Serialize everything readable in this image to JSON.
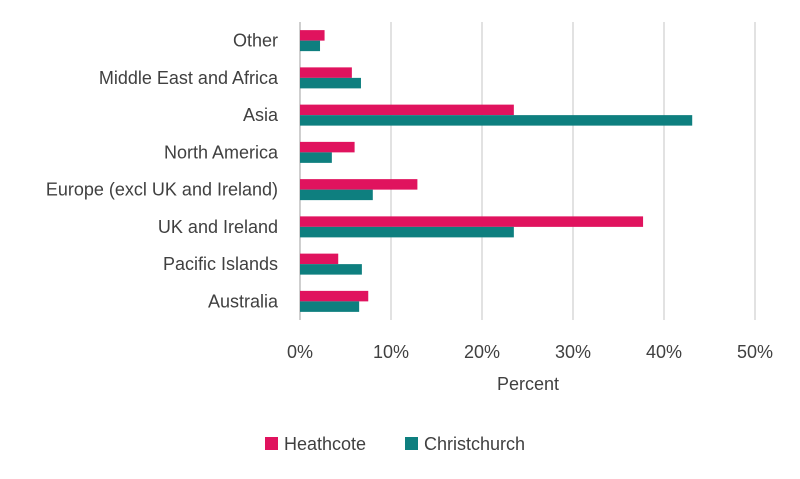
{
  "chart_data": {
    "type": "bar",
    "orientation": "horizontal",
    "categories": [
      "Other",
      "Middle East and Africa",
      "Asia",
      "North America",
      "Europe (excl UK and Ireland)",
      "UK and Ireland",
      "Pacific Islands",
      "Australia"
    ],
    "series": [
      {
        "name": "Heathcote",
        "color": "#e0135e",
        "values": [
          2.7,
          5.7,
          23.5,
          6.0,
          12.9,
          37.7,
          4.2,
          7.5
        ]
      },
      {
        "name": "Christchurch",
        "color": "#0e7f7f",
        "values": [
          2.2,
          6.7,
          43.1,
          3.5,
          8.0,
          23.5,
          6.8,
          6.5
        ]
      }
    ],
    "xlabel": "Percent",
    "ylabel": "",
    "title": "",
    "xlim": [
      0,
      50
    ],
    "xticks": [
      0,
      10,
      20,
      30,
      40,
      50
    ],
    "xtick_labels": [
      "0%",
      "10%",
      "20%",
      "30%",
      "40%",
      "50%"
    ],
    "grid": "vertical",
    "legend": "bottom",
    "gridline_color": "#d9d9d9"
  }
}
